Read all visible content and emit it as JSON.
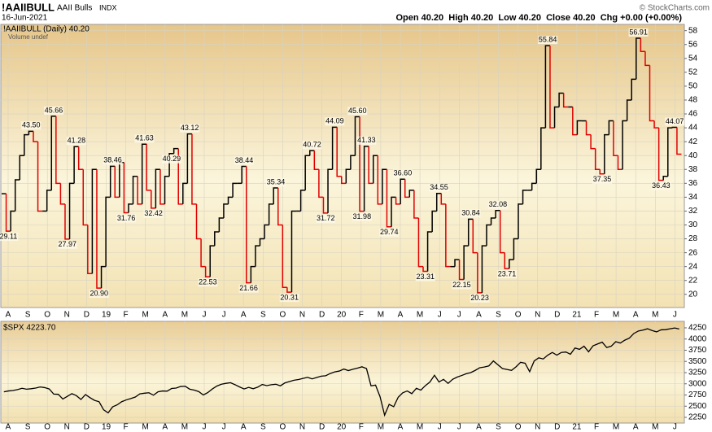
{
  "header": {
    "symbol": "!AAIIBULL",
    "name": "AAII Bulls",
    "exchange": "INDX",
    "date": "16-Jun-2021",
    "quote": "Open 40.20  High 40.20  Low 40.20  Close 40.20  Chg +0.00 (+0.00%)",
    "credit": "© StockCharts.com"
  },
  "chart_data": [
    {
      "type": "step",
      "subtitle": "Volume undef",
      "x_labels": [
        "A",
        "S",
        "O",
        "N",
        "D",
        "19",
        "F",
        "M",
        "A",
        "M",
        "J",
        "J",
        "A",
        "S",
        "O",
        "N",
        "D",
        "20",
        "F",
        "M",
        "A",
        "M",
        "J",
        "J",
        "A",
        "S",
        "O",
        "N",
        "D",
        "21",
        "F",
        "M",
        "A",
        "M",
        "J"
      ],
      "ylim": [
        18.1,
        58.9
      ],
      "yticks": [
        20,
        22,
        24,
        26,
        28,
        30,
        32,
        34,
        36,
        38,
        40,
        42,
        44,
        46,
        48,
        50,
        52,
        54,
        56,
        58
      ],
      "grid": true,
      "series": [
        {
          "name": "!AAIIBULL (Daily) 40.20",
          "color": "#000000",
          "down_color": "#e00000",
          "values": [
            34.5,
            29.11,
            32,
            36.5,
            40,
            43,
            43.5,
            42,
            32,
            32,
            35,
            45.66,
            36,
            33,
            27.97,
            36,
            41.28,
            38,
            30,
            23,
            38,
            20.9,
            24,
            34,
            38.46,
            34,
            39,
            31.76,
            33,
            37,
            33,
            41.63,
            35,
            32.42,
            38,
            33,
            37,
            40.29,
            41,
            33,
            36,
            43.12,
            33,
            28,
            24,
            22.53,
            27,
            29,
            31,
            33,
            34,
            36,
            36,
            38.44,
            21.66,
            24,
            27,
            28,
            30,
            33,
            35.34,
            30,
            21,
            20.31,
            32,
            32,
            35,
            40,
            40.72,
            38,
            34,
            31.72,
            38,
            44.09,
            37,
            36,
            38,
            40,
            45.6,
            31.98,
            41.33,
            36,
            40,
            33,
            38,
            29.74,
            34,
            33,
            36.6,
            34,
            35,
            31,
            24,
            23.31,
            29,
            32,
            34.55,
            33,
            24,
            24,
            25,
            22.15,
            27,
            30.84,
            26,
            20.23,
            27,
            30,
            31,
            32.08,
            26,
            23.71,
            25,
            28,
            33,
            35,
            35,
            36,
            38,
            44,
            55.84,
            44,
            47,
            49,
            47,
            47,
            43,
            45,
            45,
            43,
            41,
            38,
            37.35,
            43,
            45,
            40,
            38,
            45,
            48,
            51,
            56.91,
            55,
            53,
            45,
            44,
            36.43,
            37,
            44,
            44.07,
            40.2
          ],
          "value_labels": [
            null,
            "29.11",
            null,
            null,
            null,
            null,
            "43.50",
            null,
            null,
            null,
            null,
            "45.66",
            null,
            null,
            "27.97",
            null,
            "41.28",
            null,
            null,
            null,
            null,
            "20.90",
            null,
            null,
            "38.46",
            null,
            null,
            "31.76",
            null,
            null,
            null,
            "41.63",
            null,
            "32.42",
            null,
            null,
            null,
            "40.29",
            null,
            null,
            null,
            "43.12",
            null,
            null,
            null,
            "22.53",
            null,
            null,
            null,
            null,
            null,
            null,
            null,
            "38.44",
            "21.66",
            null,
            null,
            null,
            null,
            null,
            "35.34",
            null,
            null,
            "20.31",
            null,
            null,
            null,
            null,
            "40.72",
            null,
            null,
            "31.72",
            null,
            "44.09",
            null,
            null,
            null,
            null,
            "45.60",
            "31.98",
            "41.33",
            null,
            null,
            null,
            null,
            "29.74",
            null,
            null,
            "36.60",
            null,
            null,
            null,
            null,
            "23.31",
            null,
            null,
            "34.55",
            null,
            null,
            null,
            null,
            "22.15",
            null,
            "30.84",
            null,
            "20.23",
            null,
            null,
            null,
            "32.08",
            null,
            "23.71",
            null,
            null,
            null,
            null,
            null,
            null,
            null,
            null,
            "55.84",
            null,
            null,
            null,
            null,
            null,
            null,
            null,
            null,
            null,
            null,
            null,
            "37.35",
            null,
            null,
            null,
            null,
            null,
            null,
            null,
            "56.91",
            null,
            null,
            null,
            null,
            "36.43",
            null,
            null,
            "44.07",
            null
          ]
        }
      ]
    },
    {
      "type": "line",
      "x_labels": [
        "A",
        "S",
        "O",
        "N",
        "D",
        "19",
        "F",
        "M",
        "A",
        "M",
        "J",
        "J",
        "A",
        "S",
        "O",
        "N",
        "D",
        "20",
        "F",
        "M",
        "A",
        "M",
        "J",
        "J",
        "A",
        "S",
        "O",
        "N",
        "D",
        "21",
        "F",
        "M",
        "A",
        "M",
        "J"
      ],
      "ylim": [
        2123,
        4395
      ],
      "yticks": [
        2250,
        2500,
        2750,
        3000,
        3250,
        3500,
        3750,
        4000,
        4250
      ],
      "grid": true,
      "series": [
        {
          "name": "$SPX 4223.70",
          "color": "#000000",
          "values": [
            2820,
            2840,
            2850,
            2870,
            2900,
            2880,
            2890,
            2905,
            2930,
            2915,
            2885,
            2770,
            2765,
            2660,
            2720,
            2780,
            2735,
            2650,
            2760,
            2690,
            2630,
            2600,
            2420,
            2350,
            2485,
            2530,
            2600,
            2640,
            2670,
            2705,
            2775,
            2790,
            2800,
            2745,
            2820,
            2840,
            2835,
            2895,
            2905,
            2940,
            2945,
            2880,
            2860,
            2825,
            2750,
            2805,
            2885,
            2950,
            2990,
            3010,
            3025,
            2980,
            2930,
            2885,
            2920,
            2890,
            2925,
            2985,
            2960,
            2980,
            2990,
            2955,
            3020,
            3050,
            3080,
            3095,
            3120,
            3145,
            3110,
            3140,
            3170,
            3180,
            3230,
            3265,
            3285,
            3330,
            3295,
            3325,
            3350,
            3380,
            3340,
            2955,
            2970,
            2710,
            2300,
            2540,
            2488,
            2700,
            2800,
            2840,
            2780,
            2900,
            2860,
            2960,
            3040,
            3190,
            3040,
            3100,
            3010,
            3100,
            3150,
            3185,
            3225,
            3250,
            3300,
            3360,
            3375,
            3400,
            3510,
            3425,
            3340,
            3320,
            3300,
            3380,
            3480,
            3460,
            3270,
            3510,
            3580,
            3555,
            3640,
            3700,
            3640,
            3700,
            3710,
            3660,
            3800,
            3770,
            3840,
            3715,
            3850,
            3890,
            3930,
            3810,
            3840,
            3940,
            3910,
            3975,
            4020,
            4125,
            4180,
            4200,
            4230,
            4190,
            4160,
            4205,
            4210,
            4230,
            4247,
            4223.7
          ]
        }
      ]
    }
  ]
}
